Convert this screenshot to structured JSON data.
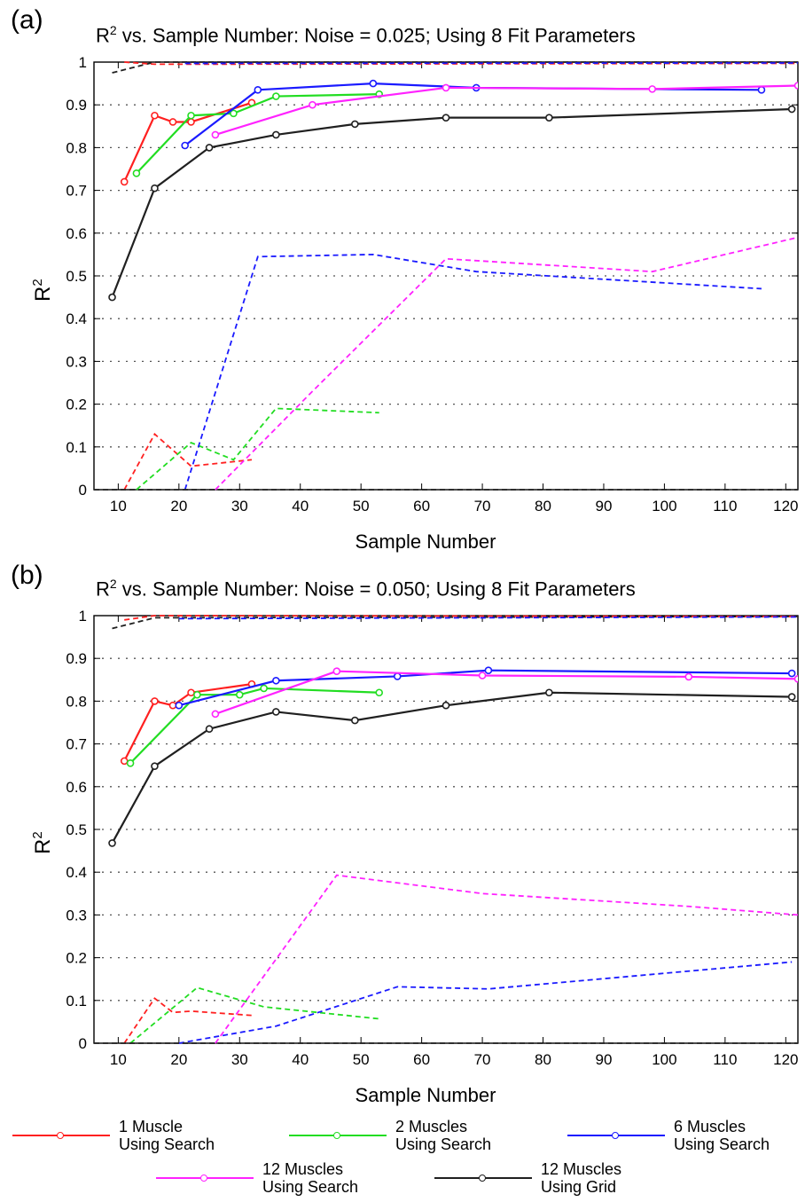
{
  "panels": [
    {
      "letter": "(a)",
      "title_prefix": "R",
      "title_sup": "2",
      "title_rest": " vs. Sample Number: Noise = 0.025; Using 8 Fit Parameters",
      "xlabel": "Sample Number",
      "ylabel_base": "R",
      "ylabel_sup": "2"
    },
    {
      "letter": "(b)",
      "title_prefix": "R",
      "title_sup": "2",
      "title_rest": " vs. Sample Number: Noise = 0.050; Using 8 Fit Parameters",
      "xlabel": "Sample Number",
      "ylabel_base": "R",
      "ylabel_sup": "2"
    }
  ],
  "legend": [
    {
      "line1": "1 Muscle",
      "line2": "Using Search",
      "color": "#ff2020"
    },
    {
      "line1": "2 Muscles",
      "line2": "Using Search",
      "color": "#22dd22"
    },
    {
      "line1": "6 Muscles",
      "line2": "Using Search",
      "color": "#1a1aff"
    },
    {
      "line1": "12 Muscles",
      "line2": "Using Search",
      "color": "#ff22ff"
    },
    {
      "line1": "12 Muscles",
      "line2": "Using Grid",
      "color": "#202020"
    }
  ],
  "chart_data": [
    {
      "type": "line",
      "title": "R² vs. Sample Number: Noise = 0.025; Using 8 Fit Parameters",
      "xlabel": "Sample Number",
      "ylabel": "R²",
      "xlim": [
        6,
        122
      ],
      "ylim": [
        0,
        1
      ],
      "xticks": [
        10,
        20,
        30,
        40,
        50,
        60,
        70,
        80,
        90,
        100,
        110,
        120
      ],
      "yticks": [
        0,
        0.1,
        0.2,
        0.3,
        0.4,
        0.5,
        0.6,
        0.7,
        0.8,
        0.9,
        1
      ],
      "grid": "horizontal dotted",
      "series": [
        {
          "name": "1 Muscle Using Search",
          "color": "#ff2020",
          "style": "solid",
          "x": [
            11,
            16,
            19,
            22,
            32
          ],
          "y": [
            0.72,
            0.875,
            0.86,
            0.86,
            0.905
          ]
        },
        {
          "name": "2 Muscles Using Search",
          "color": "#22dd22",
          "style": "solid",
          "x": [
            13,
            22,
            29,
            36,
            53
          ],
          "y": [
            0.74,
            0.875,
            0.88,
            0.92,
            0.925
          ]
        },
        {
          "name": "6 Muscles Using Search",
          "color": "#1a1aff",
          "style": "solid",
          "x": [
            21,
            33,
            52,
            69,
            116
          ],
          "y": [
            0.805,
            0.935,
            0.95,
            0.94,
            0.935
          ]
        },
        {
          "name": "12 Muscles Using Search",
          "color": "#ff22ff",
          "style": "solid",
          "x": [
            26,
            42,
            64,
            98,
            122
          ],
          "y": [
            0.83,
            0.9,
            0.94,
            0.937,
            0.945
          ]
        },
        {
          "name": "12 Muscles Using Grid",
          "color": "#202020",
          "style": "solid",
          "x": [
            9,
            16,
            25,
            36,
            49,
            64,
            81,
            121
          ],
          "y": [
            0.45,
            0.705,
            0.8,
            0.83,
            0.855,
            0.87,
            0.87,
            0.89
          ]
        },
        {
          "name": "",
          "color": "#ff2020",
          "style": "dashed",
          "x": [
            11,
            16,
            22,
            32
          ],
          "y": [
            0.0,
            0.13,
            0.055,
            0.07
          ]
        },
        {
          "name": "",
          "color": "#22dd22",
          "style": "dashed",
          "x": [
            13,
            22,
            29,
            36,
            53
          ],
          "y": [
            0.0,
            0.11,
            0.07,
            0.19,
            0.18
          ]
        },
        {
          "name": "",
          "color": "#1a1aff",
          "style": "dashed",
          "x": [
            21,
            33,
            52,
            69,
            116
          ],
          "y": [
            0.0,
            0.545,
            0.55,
            0.51,
            0.47
          ]
        },
        {
          "name": "",
          "color": "#ff22ff",
          "style": "dashed",
          "x": [
            26,
            42,
            64,
            98,
            122
          ],
          "y": [
            0.0,
            0.23,
            0.54,
            0.51,
            0.59
          ]
        },
        {
          "name": "",
          "color": "#202020",
          "style": "dashed",
          "x": [
            9,
            16,
            122
          ],
          "y": [
            0.975,
            1.0,
            1.0
          ]
        },
        {
          "name": "",
          "color": "#ff2020",
          "style": "dashed",
          "x": [
            11,
            16,
            122
          ],
          "y": [
            1.0,
            0.995,
            0.997
          ]
        },
        {
          "name": "",
          "color": "#1a1aff",
          "style": "dashed",
          "x": [
            21,
            122
          ],
          "y": [
            0.997,
            0.998
          ]
        },
        {
          "name": "",
          "color": "#202020",
          "style": "dashed",
          "x": [
            6,
            122
          ],
          "y": [
            0.0,
            0.0
          ]
        }
      ]
    },
    {
      "type": "line",
      "title": "R² vs. Sample Number: Noise = 0.050; Using 8 Fit Parameters",
      "xlabel": "Sample Number",
      "ylabel": "R²",
      "xlim": [
        6,
        122
      ],
      "ylim": [
        0,
        1
      ],
      "xticks": [
        10,
        20,
        30,
        40,
        50,
        60,
        70,
        80,
        90,
        100,
        110,
        120
      ],
      "yticks": [
        0,
        0.1,
        0.2,
        0.3,
        0.4,
        0.5,
        0.6,
        0.7,
        0.8,
        0.9,
        1
      ],
      "grid": "horizontal dotted",
      "series": [
        {
          "name": "1 Muscle Using Search",
          "color": "#ff2020",
          "style": "solid",
          "x": [
            11,
            16,
            19,
            22,
            32
          ],
          "y": [
            0.66,
            0.8,
            0.79,
            0.82,
            0.84
          ]
        },
        {
          "name": "2 Muscles Using Search",
          "color": "#22dd22",
          "style": "solid",
          "x": [
            12,
            23,
            30,
            34,
            53
          ],
          "y": [
            0.655,
            0.815,
            0.815,
            0.83,
            0.82
          ]
        },
        {
          "name": "6 Muscles Using Search",
          "color": "#1a1aff",
          "style": "solid",
          "x": [
            20,
            36,
            56,
            71,
            121
          ],
          "y": [
            0.79,
            0.848,
            0.858,
            0.872,
            0.865
          ]
        },
        {
          "name": "12 Muscles Using Search",
          "color": "#ff22ff",
          "style": "solid",
          "x": [
            26,
            46,
            70,
            104,
            122
          ],
          "y": [
            0.77,
            0.87,
            0.86,
            0.857,
            0.852
          ]
        },
        {
          "name": "12 Muscles Using Grid",
          "color": "#202020",
          "style": "solid",
          "x": [
            9,
            16,
            25,
            36,
            49,
            64,
            81,
            121
          ],
          "y": [
            0.468,
            0.648,
            0.735,
            0.775,
            0.755,
            0.79,
            0.82,
            0.81
          ]
        },
        {
          "name": "",
          "color": "#ff2020",
          "style": "dashed",
          "x": [
            11,
            16,
            19,
            22,
            32
          ],
          "y": [
            0.0,
            0.105,
            0.072,
            0.075,
            0.065
          ]
        },
        {
          "name": "",
          "color": "#22dd22",
          "style": "dashed",
          "x": [
            12,
            23,
            34,
            53
          ],
          "y": [
            0.0,
            0.13,
            0.085,
            0.057
          ]
        },
        {
          "name": "",
          "color": "#1a1aff",
          "style": "dashed",
          "x": [
            20,
            36,
            56,
            71,
            121
          ],
          "y": [
            0.0,
            0.04,
            0.132,
            0.127,
            0.19
          ]
        },
        {
          "name": "",
          "color": "#ff22ff",
          "style": "dashed",
          "x": [
            26,
            46,
            70,
            104,
            122
          ],
          "y": [
            0.0,
            0.393,
            0.35,
            0.32,
            0.3
          ]
        },
        {
          "name": "",
          "color": "#202020",
          "style": "dashed",
          "x": [
            9,
            16,
            122
          ],
          "y": [
            0.97,
            0.995,
            0.998
          ]
        },
        {
          "name": "",
          "color": "#ff2020",
          "style": "dashed",
          "x": [
            11,
            16,
            122
          ],
          "y": [
            0.99,
            1.0,
            0.998
          ]
        },
        {
          "name": "",
          "color": "#1a1aff",
          "style": "dashed",
          "x": [
            20,
            122
          ],
          "y": [
            0.993,
            0.997
          ]
        },
        {
          "name": "",
          "color": "#202020",
          "style": "dashed",
          "x": [
            6,
            122
          ],
          "y": [
            0.0,
            0.0
          ]
        }
      ]
    }
  ]
}
